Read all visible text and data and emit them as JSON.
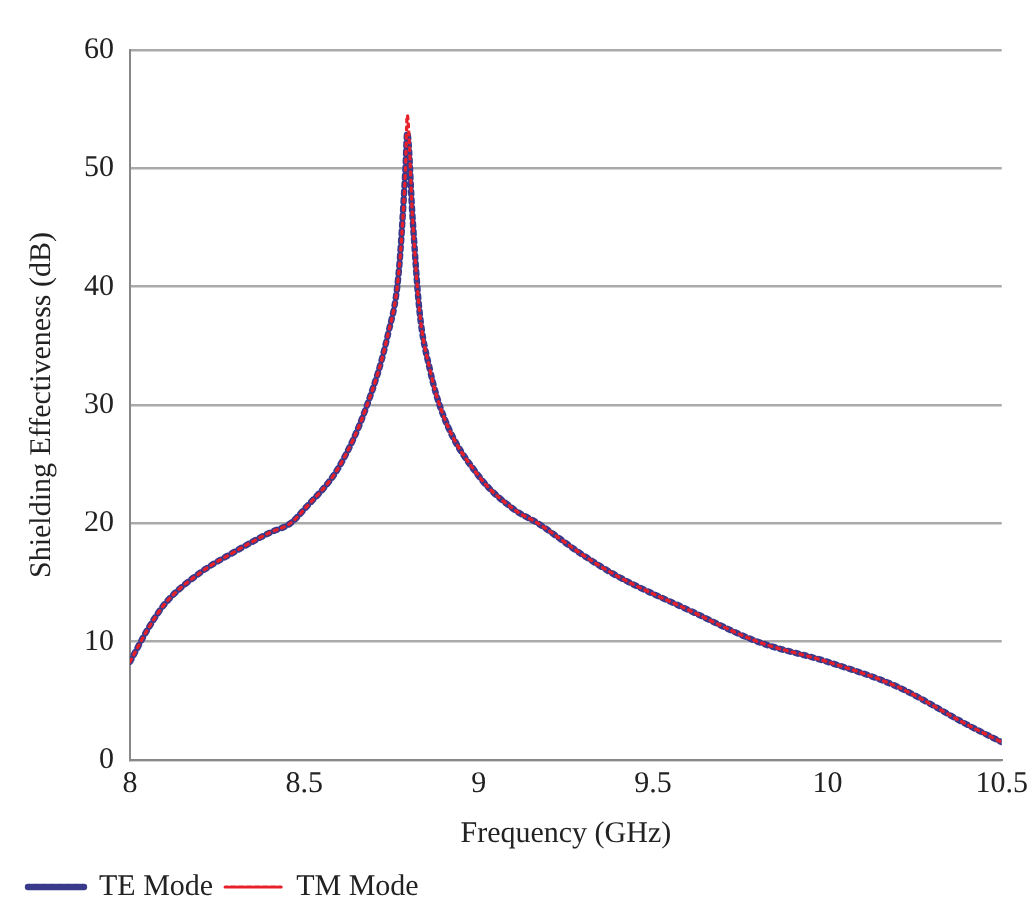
{
  "chart_data": {
    "type": "line",
    "xlabel": "Frequency (GHz)",
    "ylabel": "Shielding Effectiveness (dB)",
    "xlim": [
      8,
      10.5
    ],
    "xticks": [
      8,
      8.5,
      9,
      9.5,
      10,
      10.5
    ],
    "ylim": [
      0,
      60
    ],
    "yticks": [
      0,
      10,
      20,
      30,
      40,
      50,
      60
    ],
    "grid": "y",
    "legend": "bottom left",
    "line_style": "dotted",
    "marker": "none",
    "series": [
      {
        "name": "TE Mode",
        "color": "#3a3a8c",
        "x": [
          8,
          8.05,
          8.1,
          8.2,
          8.3,
          8.4,
          8.46,
          8.5,
          8.6,
          8.68,
          8.74,
          8.77,
          8.79,
          8.795,
          8.81,
          8.83,
          8.86,
          8.9,
          9,
          9.1,
          9.17,
          9.3,
          9.4,
          9.6,
          9.8,
          10,
          10.2,
          10.4,
          10.5
        ],
        "values": [
          8.3,
          11,
          13.2,
          15.8,
          17.6,
          19.2,
          20,
          21.2,
          24.8,
          30,
          36,
          41,
          50,
          53,
          46,
          38,
          33,
          29,
          24,
          21.2,
          20,
          17.3,
          15.5,
          12.7,
          10,
          8.3,
          6.2,
          3,
          1.5
        ]
      },
      {
        "name": "TM Mode",
        "color": "#e8202a",
        "x": [
          8,
          8.05,
          8.1,
          8.2,
          8.3,
          8.4,
          8.46,
          8.5,
          8.6,
          8.68,
          8.74,
          8.77,
          8.79,
          8.795,
          8.81,
          8.83,
          8.86,
          8.9,
          9,
          9.1,
          9.17,
          9.3,
          9.4,
          9.6,
          9.8,
          10,
          10.2,
          10.4,
          10.5
        ],
        "values": [
          8.3,
          11,
          13.2,
          15.8,
          17.6,
          19.2,
          20,
          21.2,
          24.8,
          30,
          36,
          41,
          50,
          54.5,
          46,
          38,
          33,
          29,
          24,
          21.2,
          20,
          17.3,
          15.5,
          12.7,
          10,
          8.3,
          6.2,
          3,
          1.5
        ]
      }
    ]
  }
}
